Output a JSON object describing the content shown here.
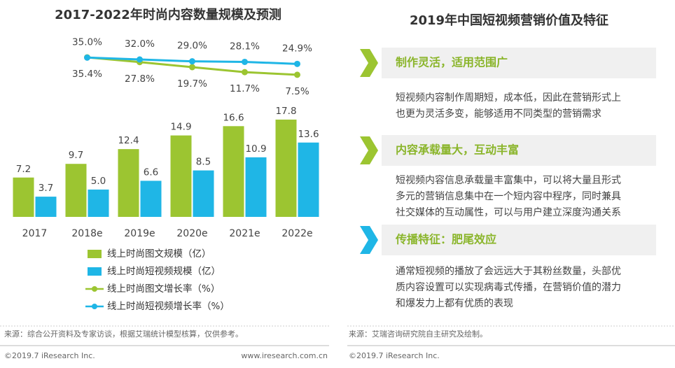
{
  "chart_data": {
    "type": "bar",
    "title": "2017-2022年时尚内容数量规模及预测",
    "categories": [
      "2017",
      "2018e",
      "2019e",
      "2020e",
      "2021e",
      "2022e"
    ],
    "ylim": [
      0,
      32
    ],
    "y2lim": [
      -220,
      60
    ],
    "legend": "bottom",
    "series": [
      {
        "name": "线上时尚图文规模（亿）",
        "color": "#9cc531",
        "values": [
          7.2,
          9.7,
          12.4,
          14.9,
          16.6,
          17.8
        ]
      },
      {
        "name": "线上时尚短视频规模（亿）",
        "color": "#1fb6e6",
        "values": [
          3.7,
          5.0,
          6.6,
          8.5,
          10.9,
          13.6
        ],
        "value_labels": [
          "3.7",
          "5.0",
          "6.6",
          "8.5",
          "10.9",
          "13.6"
        ]
      },
      {
        "name": "线上时尚图文增长率（%）",
        "type": "line",
        "axis": "y2",
        "color": "#9cc531",
        "values": [
          null,
          35.4,
          27.8,
          19.7,
          11.7,
          7.5
        ],
        "value_labels": [
          null,
          "35.4%",
          "27.8%",
          "19.7%",
          "11.7%",
          "7.5%"
        ]
      },
      {
        "name": "线上时尚短视频增长率（%）",
        "type": "line",
        "axis": "y2",
        "color": "#1fb6e6",
        "values": [
          null,
          35.0,
          32.0,
          29.0,
          28.1,
          24.9
        ],
        "value_labels": [
          null,
          "35.0%",
          "32.0%",
          "29.0%",
          "28.1%",
          "24.9%"
        ]
      }
    ],
    "source": "来源：综合公开资料及专家访谈，根据艾瑞统计模型核算，仅供参考。",
    "footer_left": "©2019.7 iResearch Inc.",
    "footer_right": "www.iresearch.com.cn"
  },
  "panel": {
    "title": "2019年中国短视频营销价值及特征",
    "items": [
      {
        "heading": "制作灵活，适用范围广",
        "lines": [
          "短视频内容制作周期短，成本低，因此在营销形式上",
          "也更为灵活多变，能够适用不同类型的营销需求"
        ]
      },
      {
        "heading": "内容承载量大，互动丰富",
        "lines": [
          "短视频内容信息承载量丰富集中，可以将大量且形式",
          "多元的营销信息集中在一个短内容中程序，同时兼具",
          "社交媒体的互动属性，可以与用户建立深度沟通关系"
        ]
      },
      {
        "heading": "传播特征：肥尾效应",
        "lines": [
          "通常短视频的播放了会远远大于其粉丝数量，头部优",
          "质内容设置可以实现病毒式传播，在营销价值的潜力",
          "和爆发力上都有优质的表现"
        ]
      }
    ],
    "source": "来源：艾瑞咨询研究院自主研究及绘制。",
    "footer": "©2019.7 iResearch Inc."
  }
}
